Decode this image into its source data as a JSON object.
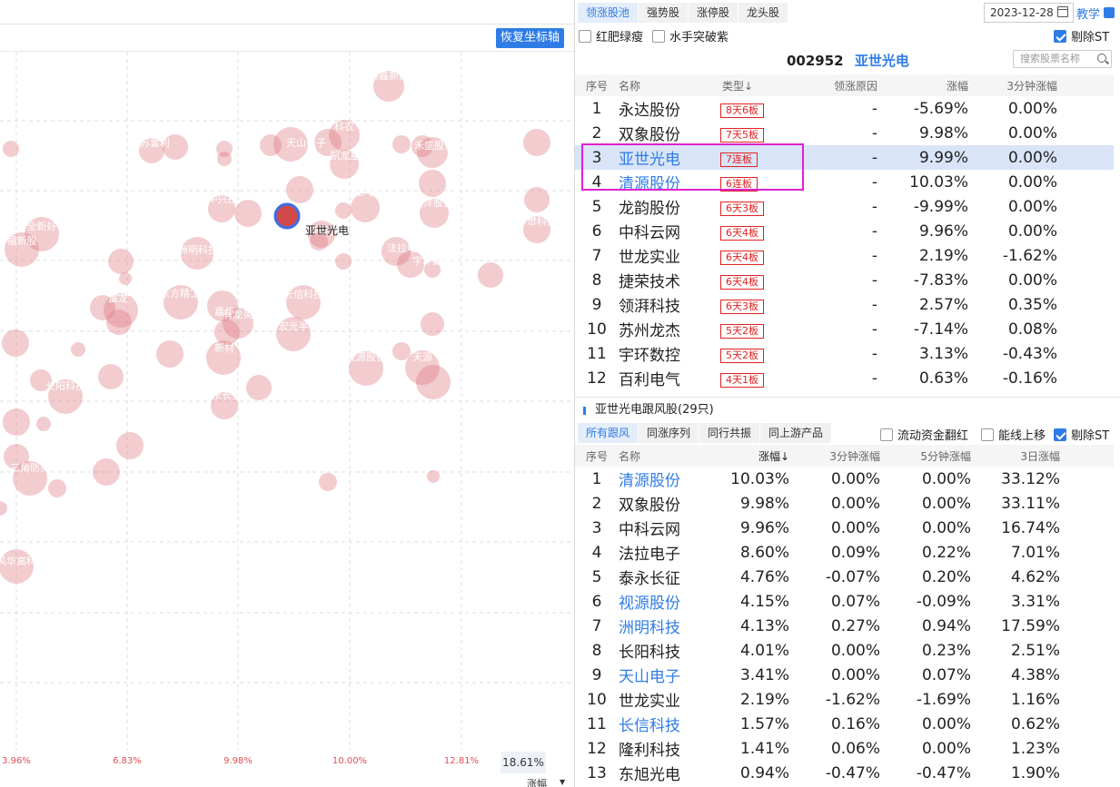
{
  "chart": {
    "restore_label": "恢复坐标轴",
    "selected_label": "亚世光电",
    "x_ticks": [
      "3.96%",
      "6.83%",
      "9.98%",
      "10.00%",
      "12.81%"
    ],
    "x_current": "18.61%",
    "x_axis_label": "涨幅",
    "bubble_labels": [
      "尚鑫新能",
      "科农",
      "天山电子",
      "禾盛股份",
      "浩洋股份",
      "中兴技",
      "东尼电子",
      "全新好",
      "福新股",
      "清源股份",
      "洲明科技",
      "川仪股份",
      "东方精工",
      "嘉华",
      "长信科技",
      "宏光半",
      "法拉电子",
      "华懋科技",
      "视源股份",
      "天源",
      "长阳科技",
      "新材",
      "三角防务",
      "风华高科",
      "富龙",
      "有龙英",
      "泰永长征",
      "宇环数控",
      "凯龙星",
      "江苏雷利"
    ]
  },
  "tabs_top": [
    "领涨股池",
    "强势股",
    "涨停股",
    "龙头股"
  ],
  "date": "2023-12-28",
  "teach_label": "教学",
  "filters_top": [
    {
      "label": "红肥绿瘦",
      "checked": false
    },
    {
      "label": "水手突破紫",
      "checked": false
    }
  ],
  "filter_exclude_st": {
    "label": "剔除ST",
    "checked": true
  },
  "current_stock": {
    "code": "002952",
    "name": "亚世光电"
  },
  "search_placeholder": "搜索股票名称",
  "table1": {
    "headers": [
      "序号",
      "名称",
      "类型↓",
      "领涨原因",
      "涨幅",
      "3分钟涨幅"
    ],
    "rows": [
      {
        "idx": "1",
        "name": "永达股份",
        "type": "8天6板",
        "reason": "-",
        "chg": "-5.69%",
        "chg3": "0.00%"
      },
      {
        "idx": "2",
        "name": "双象股份",
        "type": "7天5板",
        "reason": "-",
        "chg": "9.98%",
        "chg3": "0.00%"
      },
      {
        "idx": "3",
        "name": "亚世光电",
        "type": "7连板",
        "reason": "-",
        "chg": "9.99%",
        "chg3": "0.00%"
      },
      {
        "idx": "4",
        "name": "清源股份",
        "type": "6连板",
        "reason": "-",
        "chg": "10.03%",
        "chg3": "0.00%"
      },
      {
        "idx": "5",
        "name": "龙韵股份",
        "type": "6天3板",
        "reason": "-",
        "chg": "-9.99%",
        "chg3": "0.00%"
      },
      {
        "idx": "6",
        "name": "中科云网",
        "type": "6天4板",
        "reason": "-",
        "chg": "9.96%",
        "chg3": "0.00%"
      },
      {
        "idx": "7",
        "name": "世龙实业",
        "type": "6天4板",
        "reason": "-",
        "chg": "2.19%",
        "chg3": "-1.62%"
      },
      {
        "idx": "8",
        "name": "捷荣技术",
        "type": "6天4板",
        "reason": "-",
        "chg": "-7.83%",
        "chg3": "0.00%"
      },
      {
        "idx": "9",
        "name": "领湃科技",
        "type": "6天3板",
        "reason": "-",
        "chg": "2.57%",
        "chg3": "0.35%"
      },
      {
        "idx": "10",
        "name": "苏州龙杰",
        "type": "5天2板",
        "reason": "-",
        "chg": "-7.14%",
        "chg3": "0.08%"
      },
      {
        "idx": "11",
        "name": "宇环数控",
        "type": "5天2板",
        "reason": "-",
        "chg": "3.13%",
        "chg3": "-0.43%"
      },
      {
        "idx": "12",
        "name": "百利电气",
        "type": "4天1板",
        "reason": "-",
        "chg": "0.63%",
        "chg3": "-0.16%"
      }
    ]
  },
  "follow_title": "亚世光电跟风股(29只)",
  "tabs_follow": [
    "所有跟风",
    "同涨序列",
    "同行共振",
    "同上游产品"
  ],
  "filters_follow": [
    {
      "label": "流动资金翻红",
      "checked": false
    },
    {
      "label": "能线上移",
      "checked": false
    },
    {
      "label": "剔除ST",
      "checked": true
    }
  ],
  "table2": {
    "headers": [
      "序号",
      "名称",
      "涨幅↓",
      "3分钟涨幅",
      "5分钟涨幅",
      "3日涨幅"
    ],
    "rows": [
      {
        "idx": "1",
        "name": "清源股份",
        "blue": true,
        "chg": "10.03%",
        "chg3": "0.00%",
        "chg5": "0.00%",
        "chg3d": "33.12%"
      },
      {
        "idx": "2",
        "name": "双象股份",
        "blue": false,
        "chg": "9.98%",
        "chg3": "0.00%",
        "chg5": "0.00%",
        "chg3d": "33.11%"
      },
      {
        "idx": "3",
        "name": "中科云网",
        "blue": false,
        "chg": "9.96%",
        "chg3": "0.00%",
        "chg5": "0.00%",
        "chg3d": "16.74%"
      },
      {
        "idx": "4",
        "name": "法拉电子",
        "blue": false,
        "chg": "8.60%",
        "chg3": "0.09%",
        "chg5": "0.22%",
        "chg3d": "7.01%"
      },
      {
        "idx": "5",
        "name": "泰永长征",
        "blue": false,
        "chg": "4.76%",
        "chg3": "-0.07%",
        "chg5": "0.20%",
        "chg3d": "4.62%"
      },
      {
        "idx": "6",
        "name": "视源股份",
        "blue": true,
        "chg": "4.15%",
        "chg3": "0.07%",
        "chg5": "-0.09%",
        "chg3d": "3.31%"
      },
      {
        "idx": "7",
        "name": "洲明科技",
        "blue": true,
        "chg": "4.13%",
        "chg3": "0.27%",
        "chg5": "0.94%",
        "chg3d": "17.59%"
      },
      {
        "idx": "8",
        "name": "长阳科技",
        "blue": false,
        "chg": "4.01%",
        "chg3": "0.00%",
        "chg5": "0.23%",
        "chg3d": "2.51%"
      },
      {
        "idx": "9",
        "name": "天山电子",
        "blue": true,
        "chg": "3.41%",
        "chg3": "0.00%",
        "chg5": "0.07%",
        "chg3d": "4.38%"
      },
      {
        "idx": "10",
        "name": "世龙实业",
        "blue": false,
        "chg": "2.19%",
        "chg3": "-1.62%",
        "chg5": "-1.69%",
        "chg3d": "1.16%"
      },
      {
        "idx": "11",
        "name": "长信科技",
        "blue": true,
        "chg": "1.57%",
        "chg3": "0.16%",
        "chg5": "0.00%",
        "chg3d": "0.62%"
      },
      {
        "idx": "12",
        "name": "隆利科技",
        "blue": false,
        "chg": "1.41%",
        "chg3": "0.06%",
        "chg5": "0.00%",
        "chg3d": "1.23%"
      },
      {
        "idx": "13",
        "name": "东旭光电",
        "blue": false,
        "chg": "0.94%",
        "chg3": "-0.47%",
        "chg5": "-0.47%",
        "chg3d": "1.90%"
      }
    ]
  }
}
